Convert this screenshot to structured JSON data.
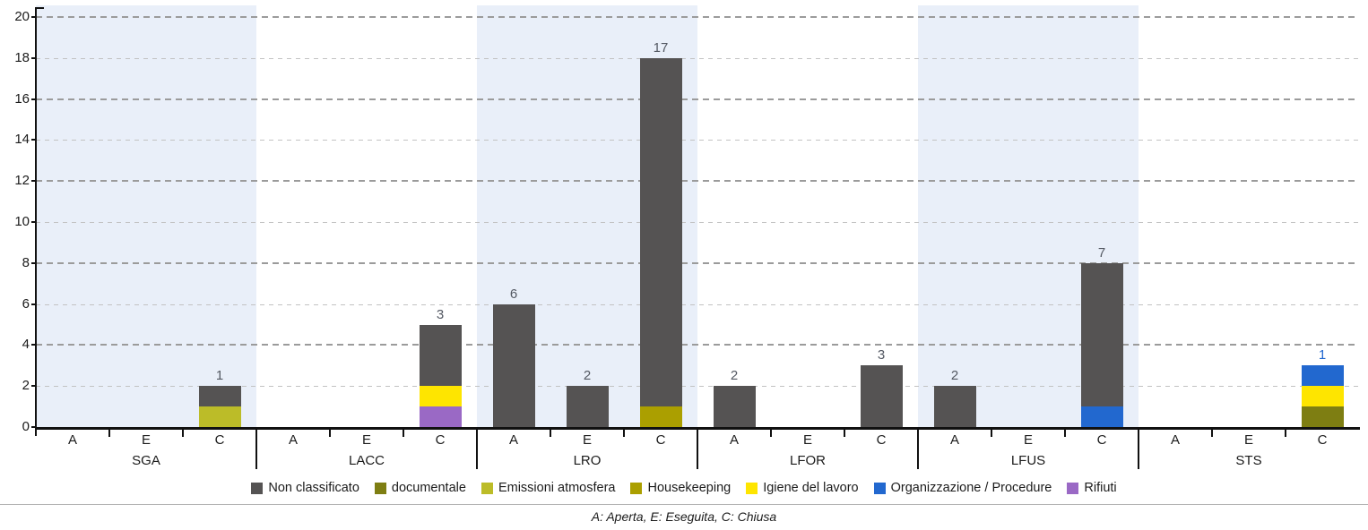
{
  "chart_data": {
    "type": "bar",
    "stacked": true,
    "grid": true,
    "y_axis": {
      "min": 0,
      "max": 20,
      "step": 2
    },
    "slot_labels": [
      "A",
      "E",
      "C"
    ],
    "band_color": "#e9eff9",
    "groups": [
      {
        "label": "SGA",
        "highlighted": true,
        "bars": {
          "A": [],
          "E": [],
          "C": [
            {
              "category": "Emissioni atmosfera",
              "value": 1
            },
            {
              "category": "Non classificato",
              "value": 1
            }
          ]
        }
      },
      {
        "label": "LACC",
        "highlighted": false,
        "bars": {
          "A": [],
          "E": [],
          "C": [
            {
              "category": "Rifiuti",
              "value": 1
            },
            {
              "category": "Igiene del lavoro",
              "value": 1
            },
            {
              "category": "Non classificato",
              "value": 3
            }
          ]
        }
      },
      {
        "label": "LRO",
        "highlighted": true,
        "bars": {
          "A": [
            {
              "category": "Non classificato",
              "value": 6
            }
          ],
          "E": [
            {
              "category": "Non classificato",
              "value": 2
            }
          ],
          "C": [
            {
              "category": "Housekeeping",
              "value": 1
            },
            {
              "category": "Non classificato",
              "value": 17
            }
          ]
        }
      },
      {
        "label": "LFOR",
        "highlighted": false,
        "bars": {
          "A": [
            {
              "category": "Non classificato",
              "value": 2
            }
          ],
          "E": [],
          "C": [
            {
              "category": "Non classificato",
              "value": 3
            }
          ]
        }
      },
      {
        "label": "LFUS",
        "highlighted": true,
        "bars": {
          "A": [
            {
              "category": "Non classificato",
              "value": 2
            }
          ],
          "E": [],
          "C": [
            {
              "category": "Organizzazione / Procedure",
              "value": 1
            },
            {
              "category": "Non classificato",
              "value": 7
            }
          ]
        }
      },
      {
        "label": "STS",
        "highlighted": false,
        "bars": {
          "A": [],
          "E": [],
          "C": [
            {
              "category": "documentale",
              "value": 1
            },
            {
              "category": "Igiene del lavoro",
              "value": 1
            },
            {
              "category": "Organizzazione / Procedure",
              "value": 1
            }
          ]
        }
      }
    ],
    "legend": [
      {
        "label": "Non classificato",
        "color": "#555353"
      },
      {
        "label": "documentale",
        "color": "#7e7e12"
      },
      {
        "label": "Emissioni atmosfera",
        "color": "#bcbc28"
      },
      {
        "label": "Housekeeping",
        "color": "#ab9f00"
      },
      {
        "label": "Igiene del lavoro",
        "color": "#fee500"
      },
      {
        "label": "Organizzazione / Procedure",
        "color": "#2268cf"
      },
      {
        "label": "Rifiuti",
        "color": "#9a69c5"
      }
    ],
    "value_label_color_overrides": {
      "Non classificato": "#535862"
    },
    "footer_note": "A: Aperta, E: Eseguita, C: Chiusa"
  }
}
